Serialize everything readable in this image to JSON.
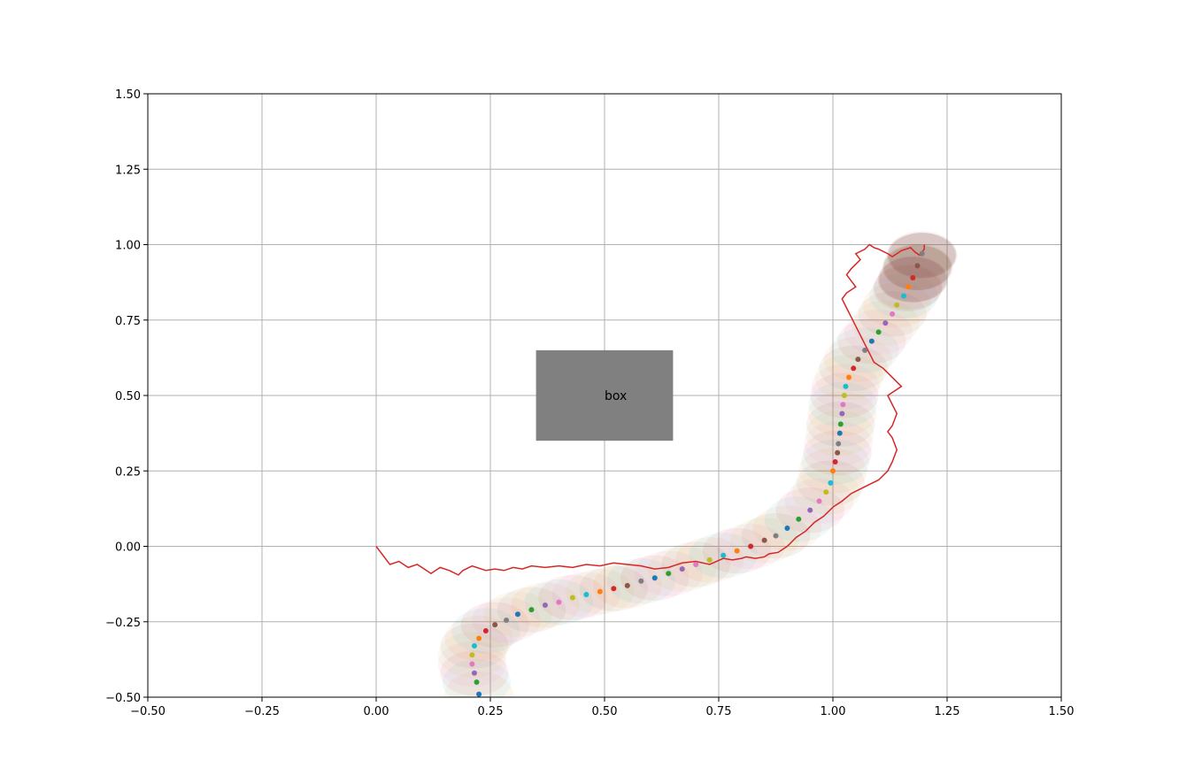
{
  "chart_data": {
    "type": "scatter",
    "xlim": [
      -0.5,
      1.5
    ],
    "ylim": [
      -0.5,
      1.5
    ],
    "grid": true,
    "xticks": [
      -0.5,
      -0.25,
      0.0,
      0.25,
      0.5,
      0.75,
      1.0,
      1.25,
      1.5
    ],
    "yticks": [
      -0.5,
      -0.25,
      0.0,
      0.25,
      0.5,
      0.75,
      1.0,
      1.25,
      1.5
    ],
    "xtick_labels": [
      "−0.50",
      "−0.25",
      "0.00",
      "0.25",
      "0.50",
      "0.75",
      "1.00",
      "1.25",
      "1.50"
    ],
    "ytick_labels": [
      "−0.50",
      "−0.25",
      "0.00",
      "0.25",
      "0.50",
      "0.75",
      "1.00",
      "1.25",
      "1.50"
    ],
    "obstacle": {
      "label": "box",
      "x0": 0.35,
      "x1": 0.65,
      "y0": 0.35,
      "y1": 0.65,
      "color": "#808080"
    },
    "red_path": {
      "color": "#d62728",
      "x": [
        0.0,
        0.03,
        0.05,
        0.07,
        0.09,
        0.11,
        0.12,
        0.14,
        0.16,
        0.18,
        0.19,
        0.21,
        0.22,
        0.24,
        0.26,
        0.28,
        0.3,
        0.32,
        0.34,
        0.37,
        0.4,
        0.43,
        0.46,
        0.49,
        0.52,
        0.55,
        0.58,
        0.61,
        0.64,
        0.67,
        0.7,
        0.73,
        0.76,
        0.78,
        0.8,
        0.81,
        0.83,
        0.85,
        0.86,
        0.88,
        0.9,
        0.92,
        0.94,
        0.96,
        0.98,
        1.0,
        1.02,
        1.04,
        1.06,
        1.08,
        1.1,
        1.12,
        1.13,
        1.14,
        1.13,
        1.12,
        1.13,
        1.14,
        1.13,
        1.12,
        1.15,
        1.13,
        1.11,
        1.09,
        1.08,
        1.07,
        1.06,
        1.05,
        1.04,
        1.03,
        1.02,
        1.03,
        1.05,
        1.04,
        1.03,
        1.04,
        1.06,
        1.05,
        1.07,
        1.08,
        1.09,
        1.1,
        1.12,
        1.13,
        1.15,
        1.17,
        1.18,
        1.19,
        1.2,
        1.2
      ],
      "y": [
        0.0,
        -0.06,
        -0.05,
        -0.07,
        -0.06,
        -0.08,
        -0.09,
        -0.07,
        -0.08,
        -0.095,
        -0.08,
        -0.065,
        -0.07,
        -0.08,
        -0.075,
        -0.08,
        -0.07,
        -0.075,
        -0.065,
        -0.07,
        -0.065,
        -0.07,
        -0.06,
        -0.065,
        -0.055,
        -0.06,
        -0.065,
        -0.075,
        -0.07,
        -0.055,
        -0.05,
        -0.06,
        -0.04,
        -0.045,
        -0.04,
        -0.035,
        -0.04,
        -0.035,
        -0.025,
        -0.02,
        0.0,
        0.03,
        0.05,
        0.08,
        0.1,
        0.13,
        0.15,
        0.175,
        0.19,
        0.205,
        0.22,
        0.25,
        0.28,
        0.32,
        0.36,
        0.38,
        0.4,
        0.44,
        0.47,
        0.5,
        0.53,
        0.56,
        0.59,
        0.61,
        0.64,
        0.67,
        0.7,
        0.73,
        0.76,
        0.79,
        0.82,
        0.84,
        0.86,
        0.88,
        0.9,
        0.92,
        0.95,
        0.97,
        0.985,
        1.0,
        0.99,
        0.985,
        0.97,
        0.96,
        0.98,
        0.99,
        0.975,
        0.965,
        0.985,
        1.0
      ],
      "trim_points_before": 0
    },
    "dot_colors": [
      "#1f77b4",
      "#2ca02c",
      "#9467bd",
      "#e377c2",
      "#bcbd22",
      "#17becf",
      "#ff7f0e",
      "#d62728",
      "#8c564b",
      "#7f7f7f"
    ],
    "dotted_path": {
      "x": [
        0.225,
        0.22,
        0.215,
        0.21,
        0.21,
        0.215,
        0.225,
        0.24,
        0.26,
        0.285,
        0.31,
        0.34,
        0.37,
        0.4,
        0.43,
        0.46,
        0.49,
        0.52,
        0.55,
        0.58,
        0.61,
        0.64,
        0.67,
        0.7,
        0.73,
        0.76,
        0.79,
        0.82,
        0.85,
        0.875,
        0.9,
        0.925,
        0.95,
        0.97,
        0.985,
        0.995,
        1.0,
        1.005,
        1.01,
        1.012,
        1.015,
        1.017,
        1.02,
        1.022,
        1.025,
        1.028,
        1.035,
        1.045,
        1.055,
        1.07,
        1.085,
        1.1,
        1.115,
        1.13,
        1.14,
        1.155,
        1.165,
        1.175,
        1.185,
        1.195
      ],
      "y": [
        -0.49,
        -0.45,
        -0.42,
        -0.39,
        -0.36,
        -0.33,
        -0.305,
        -0.28,
        -0.26,
        -0.245,
        -0.225,
        -0.21,
        -0.195,
        -0.185,
        -0.17,
        -0.16,
        -0.15,
        -0.14,
        -0.13,
        -0.115,
        -0.105,
        -0.09,
        -0.075,
        -0.06,
        -0.045,
        -0.03,
        -0.015,
        0.0,
        0.02,
        0.035,
        0.06,
        0.09,
        0.12,
        0.15,
        0.18,
        0.21,
        0.25,
        0.28,
        0.31,
        0.34,
        0.375,
        0.405,
        0.44,
        0.47,
        0.5,
        0.53,
        0.56,
        0.59,
        0.62,
        0.65,
        0.68,
        0.71,
        0.74,
        0.77,
        0.8,
        0.83,
        0.86,
        0.89,
        0.93,
        0.97
      ]
    },
    "halo_radius": 0.075,
    "halo_colors": [
      "#ff7f0e",
      "#17becf",
      "#d62728",
      "#e377c2",
      "#bcbd22",
      "#8c564b"
    ],
    "end_halo_color": "#8c564b"
  }
}
